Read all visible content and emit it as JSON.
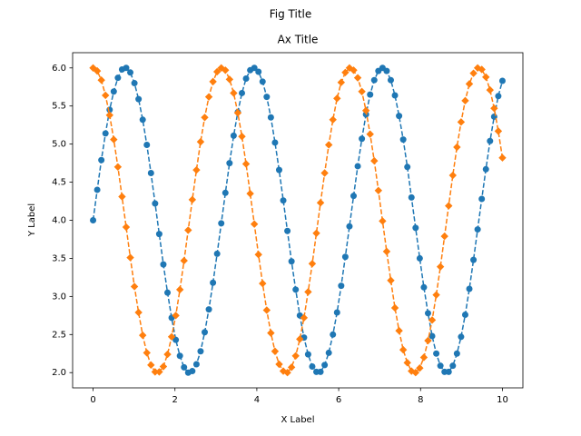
{
  "chart_data": {
    "type": "line",
    "suptitle": "Fig Title",
    "title": "Ax Title",
    "xlabel": "X Label",
    "ylabel": "Y Label",
    "x": [
      0,
      0.101,
      0.202,
      0.303,
      0.404,
      0.505,
      0.606,
      0.707,
      0.808,
      0.909,
      1.01,
      1.111,
      1.212,
      1.313,
      1.414,
      1.515,
      1.616,
      1.717,
      1.818,
      1.919,
      2.02,
      2.121,
      2.222,
      2.323,
      2.424,
      2.525,
      2.626,
      2.727,
      2.828,
      2.929,
      3.03,
      3.131,
      3.232,
      3.333,
      3.434,
      3.535,
      3.636,
      3.737,
      3.838,
      3.939,
      4.04,
      4.141,
      4.242,
      4.343,
      4.444,
      4.545,
      4.646,
      4.747,
      4.848,
      4.949,
      5.051,
      5.152,
      5.253,
      5.354,
      5.455,
      5.556,
      5.657,
      5.758,
      5.859,
      5.96,
      6.061,
      6.162,
      6.263,
      6.364,
      6.465,
      6.566,
      6.667,
      6.768,
      6.869,
      6.97,
      7.071,
      7.172,
      7.273,
      7.374,
      7.475,
      7.576,
      7.677,
      7.778,
      7.879,
      7.98,
      8.081,
      8.182,
      8.283,
      8.384,
      8.485,
      8.586,
      8.687,
      8.788,
      8.889,
      8.99,
      9.091,
      9.192,
      9.293,
      9.394,
      9.495,
      9.596,
      9.697,
      9.798,
      9.899,
      10
    ],
    "series": [
      {
        "color": "#1f77b4",
        "marker": "circle",
        "linestyle": "dashed",
        "values": [
          4.0,
          4.4,
          4.79,
          5.14,
          5.45,
          5.69,
          5.87,
          5.98,
          6.0,
          5.94,
          5.8,
          5.59,
          5.32,
          4.99,
          4.62,
          4.22,
          3.82,
          3.42,
          3.05,
          2.72,
          2.43,
          2.22,
          2.07,
          2.0,
          2.02,
          2.11,
          2.28,
          2.53,
          2.83,
          3.18,
          3.56,
          3.96,
          4.36,
          4.75,
          5.11,
          5.42,
          5.67,
          5.86,
          5.97,
          6.0,
          5.95,
          5.82,
          5.62,
          5.35,
          5.02,
          4.66,
          4.26,
          3.86,
          3.46,
          3.09,
          2.75,
          2.46,
          2.24,
          2.08,
          2.01,
          2.01,
          2.1,
          2.26,
          2.5,
          2.79,
          3.14,
          3.52,
          3.92,
          4.32,
          4.71,
          5.07,
          5.39,
          5.65,
          5.84,
          5.96,
          6.0,
          5.96,
          5.84,
          5.64,
          5.37,
          5.06,
          4.7,
          4.3,
          3.9,
          3.5,
          3.12,
          2.78,
          2.48,
          2.25,
          2.09,
          2.01,
          2.01,
          2.09,
          2.25,
          2.47,
          2.76,
          3.1,
          3.48,
          3.88,
          4.28,
          4.67,
          5.04,
          5.36,
          5.63,
          5.83
        ]
      },
      {
        "color": "#ff7f0e",
        "marker": "diamond",
        "linestyle": "dashed",
        "values": [
          6.0,
          5.96,
          5.84,
          5.64,
          5.38,
          5.06,
          4.7,
          4.31,
          3.91,
          3.51,
          3.13,
          2.79,
          2.49,
          2.26,
          2.1,
          2.01,
          2.01,
          2.08,
          2.24,
          2.47,
          2.75,
          3.09,
          3.47,
          3.87,
          4.27,
          4.66,
          5.03,
          5.35,
          5.62,
          5.82,
          5.95,
          6.0,
          5.97,
          5.85,
          5.67,
          5.41,
          5.1,
          4.74,
          4.35,
          3.95,
          3.55,
          3.17,
          2.82,
          2.52,
          2.28,
          2.11,
          2.02,
          2.0,
          2.07,
          2.22,
          2.44,
          2.72,
          3.06,
          3.43,
          3.83,
          4.23,
          4.62,
          4.99,
          5.32,
          5.6,
          5.81,
          5.94,
          6.0,
          5.97,
          5.87,
          5.69,
          5.44,
          5.13,
          4.78,
          4.39,
          3.99,
          3.59,
          3.21,
          2.85,
          2.55,
          2.3,
          2.13,
          2.02,
          2.0,
          2.06,
          2.2,
          2.42,
          2.69,
          3.02,
          3.39,
          3.79,
          4.19,
          4.59,
          4.96,
          5.29,
          5.57,
          5.79,
          5.93,
          6.0,
          5.98,
          5.88,
          5.71,
          5.47,
          5.17,
          4.82
        ]
      }
    ],
    "xlim": [
      -0.5,
      10.5
    ],
    "xticks": [
      0,
      2,
      4,
      6,
      8,
      10
    ],
    "ylim": [
      1.8,
      6.2
    ],
    "yticks": [
      {
        "value": 2,
        "label": "2.0"
      },
      {
        "value": 2.5,
        "label": "2.5"
      },
      {
        "value": 3,
        "label": "3.0"
      },
      {
        "value": 3.5,
        "label": "3.5"
      },
      {
        "value": 4,
        "label": "4.0"
      },
      {
        "value": 4.5,
        "label": "4.5"
      },
      {
        "value": 5,
        "label": "5.0"
      },
      {
        "value": 5.5,
        "label": "5.5"
      },
      {
        "value": 6,
        "label": "6.0"
      }
    ],
    "grid": false
  }
}
